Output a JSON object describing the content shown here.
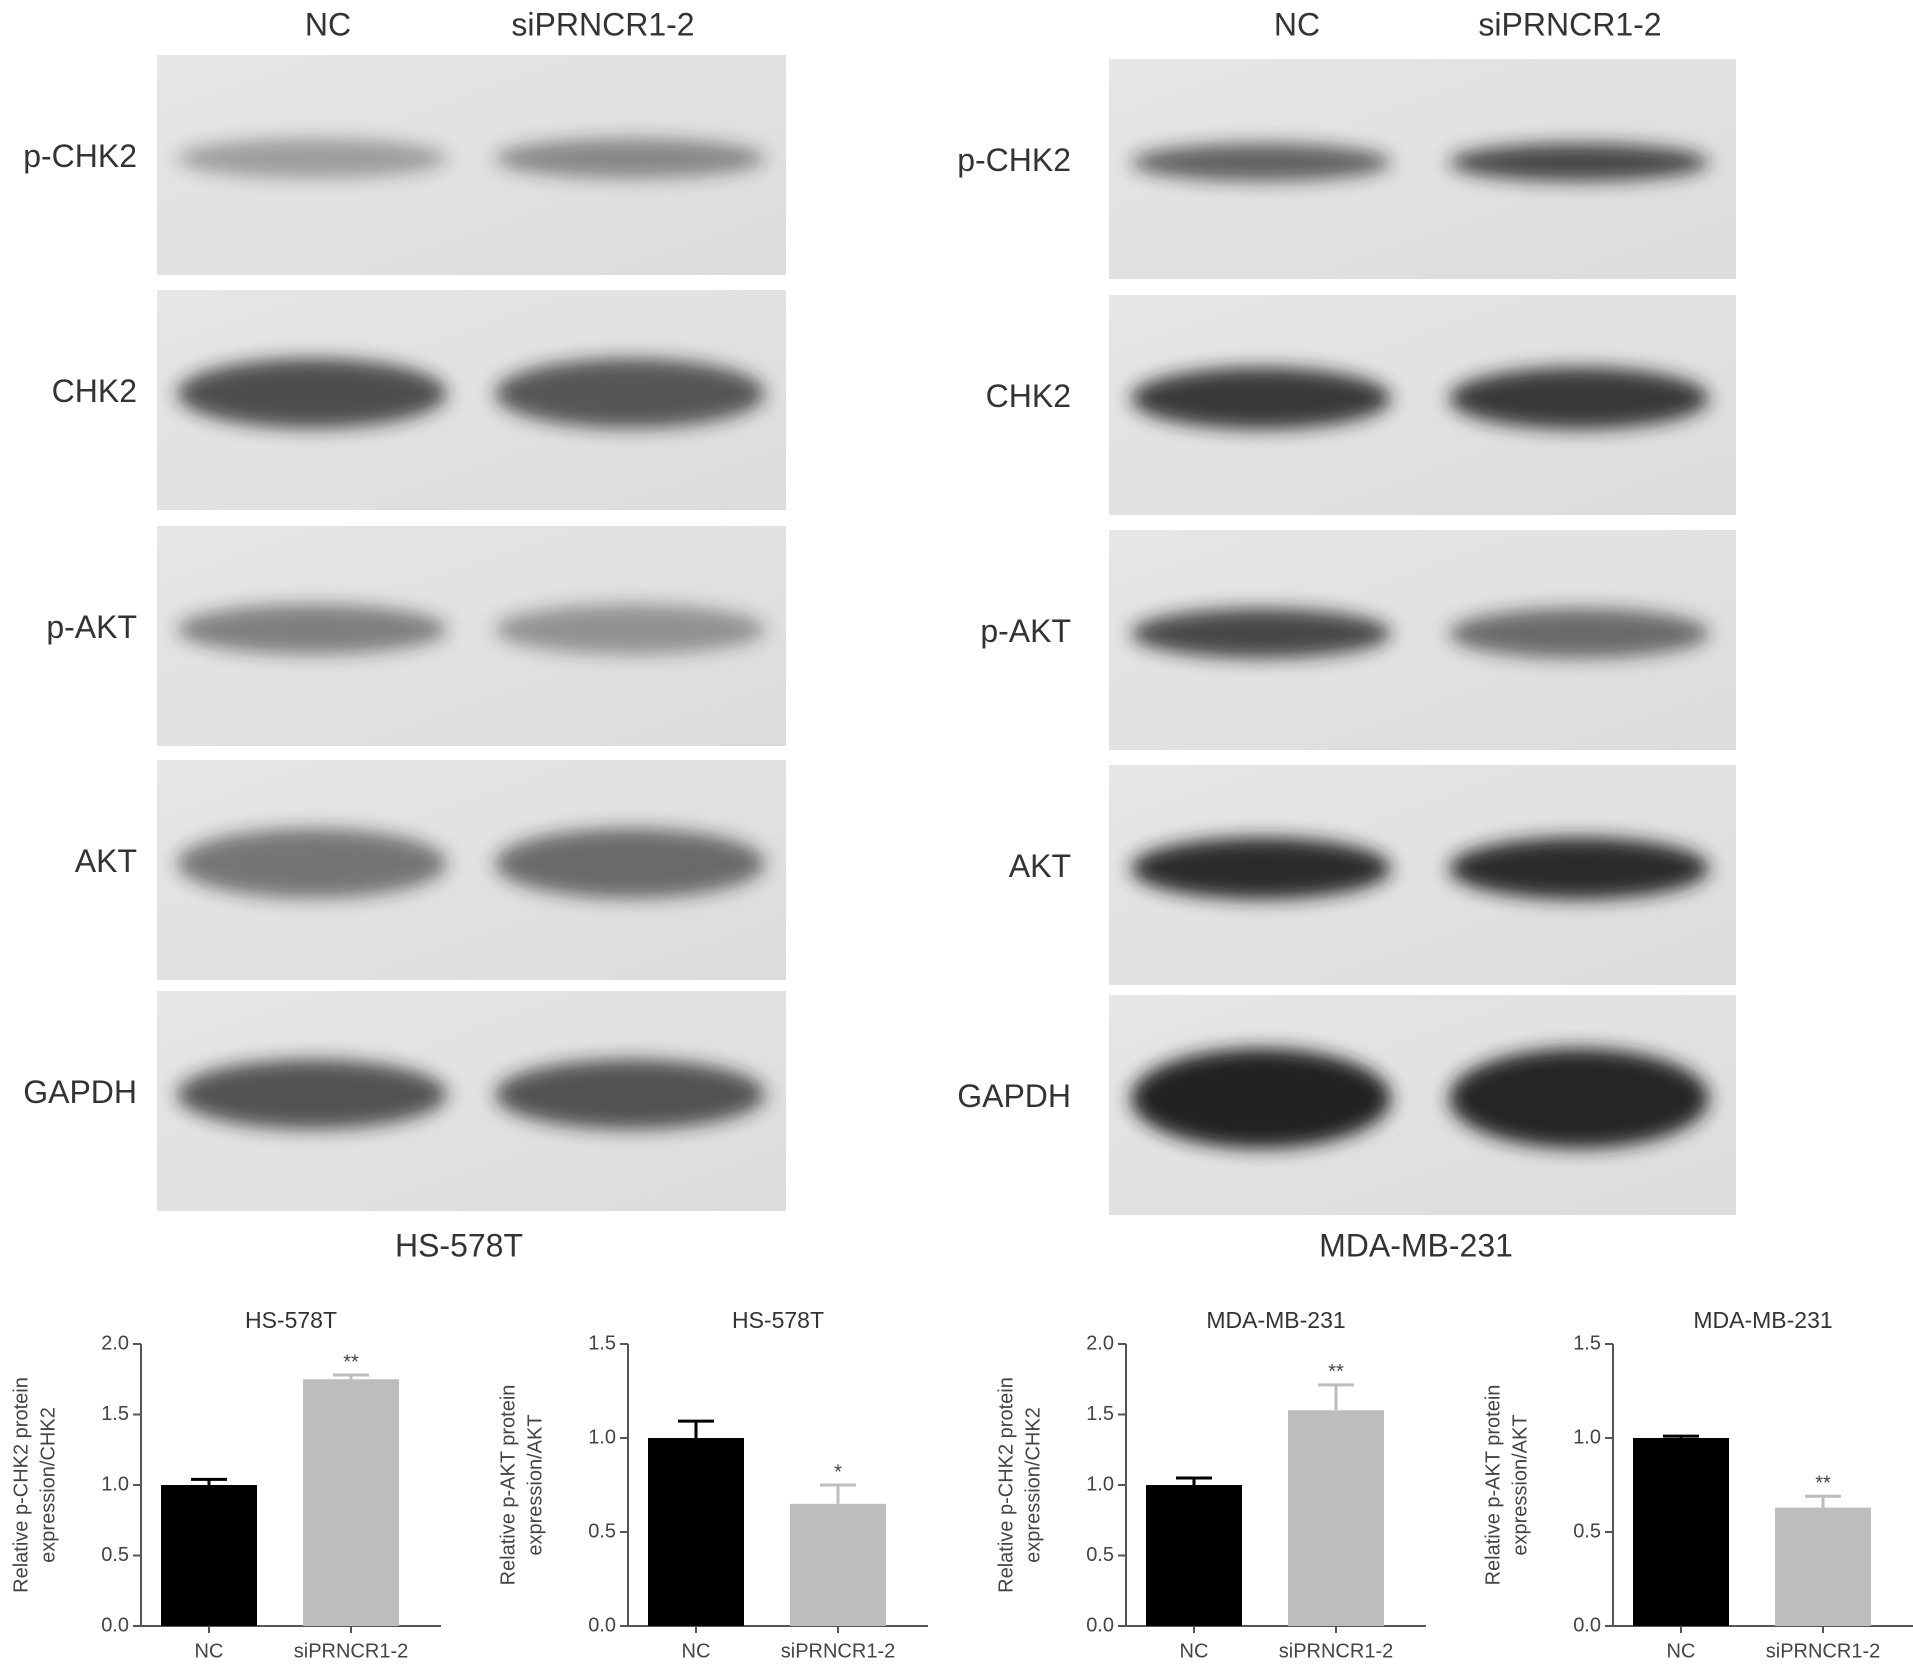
{
  "blots": [
    {
      "lanes": [
        "NC",
        "siPRNCR1-2"
      ],
      "proteins": [
        "p-CHK2",
        "CHK2",
        "p-AKT",
        "AKT",
        "GAPDH"
      ],
      "cell_line": "HS-578T"
    },
    {
      "lanes": [
        "NC",
        "siPRNCR1-2"
      ],
      "proteins": [
        "p-CHK2",
        "CHK2",
        "p-AKT",
        "AKT",
        "GAPDH"
      ],
      "cell_line": "MDA-MB-231"
    }
  ],
  "chart_data": [
    {
      "type": "bar",
      "title": "HS-578T",
      "ylabel": [
        "Relative p-CHK2 protein",
        "expression/CHK2"
      ],
      "categories": [
        "NC",
        "siPRNCR1-2"
      ],
      "values": [
        1.0,
        1.75
      ],
      "errors": [
        0.04,
        0.03
      ],
      "colors": [
        "#000000",
        "#bdbdbd"
      ],
      "annotation": "**",
      "ylim": [
        0,
        2
      ],
      "yticks": [
        {
          "value": 0,
          "label": "0.0"
        },
        {
          "value": 0.5,
          "label": "0.5"
        },
        {
          "value": 1,
          "label": "1.0"
        },
        {
          "value": 1.5,
          "label": "1.5"
        },
        {
          "value": 2,
          "label": "2.0"
        }
      ]
    },
    {
      "type": "bar",
      "title": "HS-578T",
      "ylabel": [
        "Relative p-AKT protein",
        "expression/AKT"
      ],
      "categories": [
        "NC",
        "siPRNCR1-2"
      ],
      "values": [
        1.0,
        0.65
      ],
      "errors": [
        0.09,
        0.1
      ],
      "colors": [
        "#000000",
        "#bdbdbd"
      ],
      "annotation": "*",
      "ylim": [
        0,
        1.5
      ],
      "yticks": [
        {
          "value": 0,
          "label": "0.0"
        },
        {
          "value": 0.5,
          "label": "0.5"
        },
        {
          "value": 1,
          "label": "1.0"
        },
        {
          "value": 1.5,
          "label": "1.5"
        }
      ]
    },
    {
      "type": "bar",
      "title": "MDA-MB-231",
      "ylabel": [
        "Relative p-CHK2 protein",
        "expression/CHK2"
      ],
      "categories": [
        "NC",
        "siPRNCR1-2"
      ],
      "values": [
        1.0,
        1.53
      ],
      "errors": [
        0.05,
        0.18
      ],
      "colors": [
        "#000000",
        "#bdbdbd"
      ],
      "annotation": "**",
      "ylim": [
        0,
        2
      ],
      "yticks": [
        {
          "value": 0,
          "label": "0.0"
        },
        {
          "value": 0.5,
          "label": "0.5"
        },
        {
          "value": 1,
          "label": "1.0"
        },
        {
          "value": 1.5,
          "label": "1.5"
        },
        {
          "value": 2,
          "label": "2.0"
        }
      ]
    },
    {
      "type": "bar",
      "title": "MDA-MB-231",
      "ylabel": [
        "Relative p-AKT protein",
        "expression/AKT"
      ],
      "categories": [
        "NC",
        "siPRNCR1-2"
      ],
      "values": [
        1.0,
        0.63
      ],
      "errors": [
        0.01,
        0.06
      ],
      "colors": [
        "#000000",
        "#bdbdbd"
      ],
      "annotation": "**",
      "ylim": [
        0,
        1.5
      ],
      "yticks": [
        {
          "value": 0,
          "label": "0.0"
        },
        {
          "value": 0.5,
          "label": "0.5"
        },
        {
          "value": 1,
          "label": "1.0"
        },
        {
          "value": 1.5,
          "label": "1.5"
        }
      ]
    }
  ]
}
